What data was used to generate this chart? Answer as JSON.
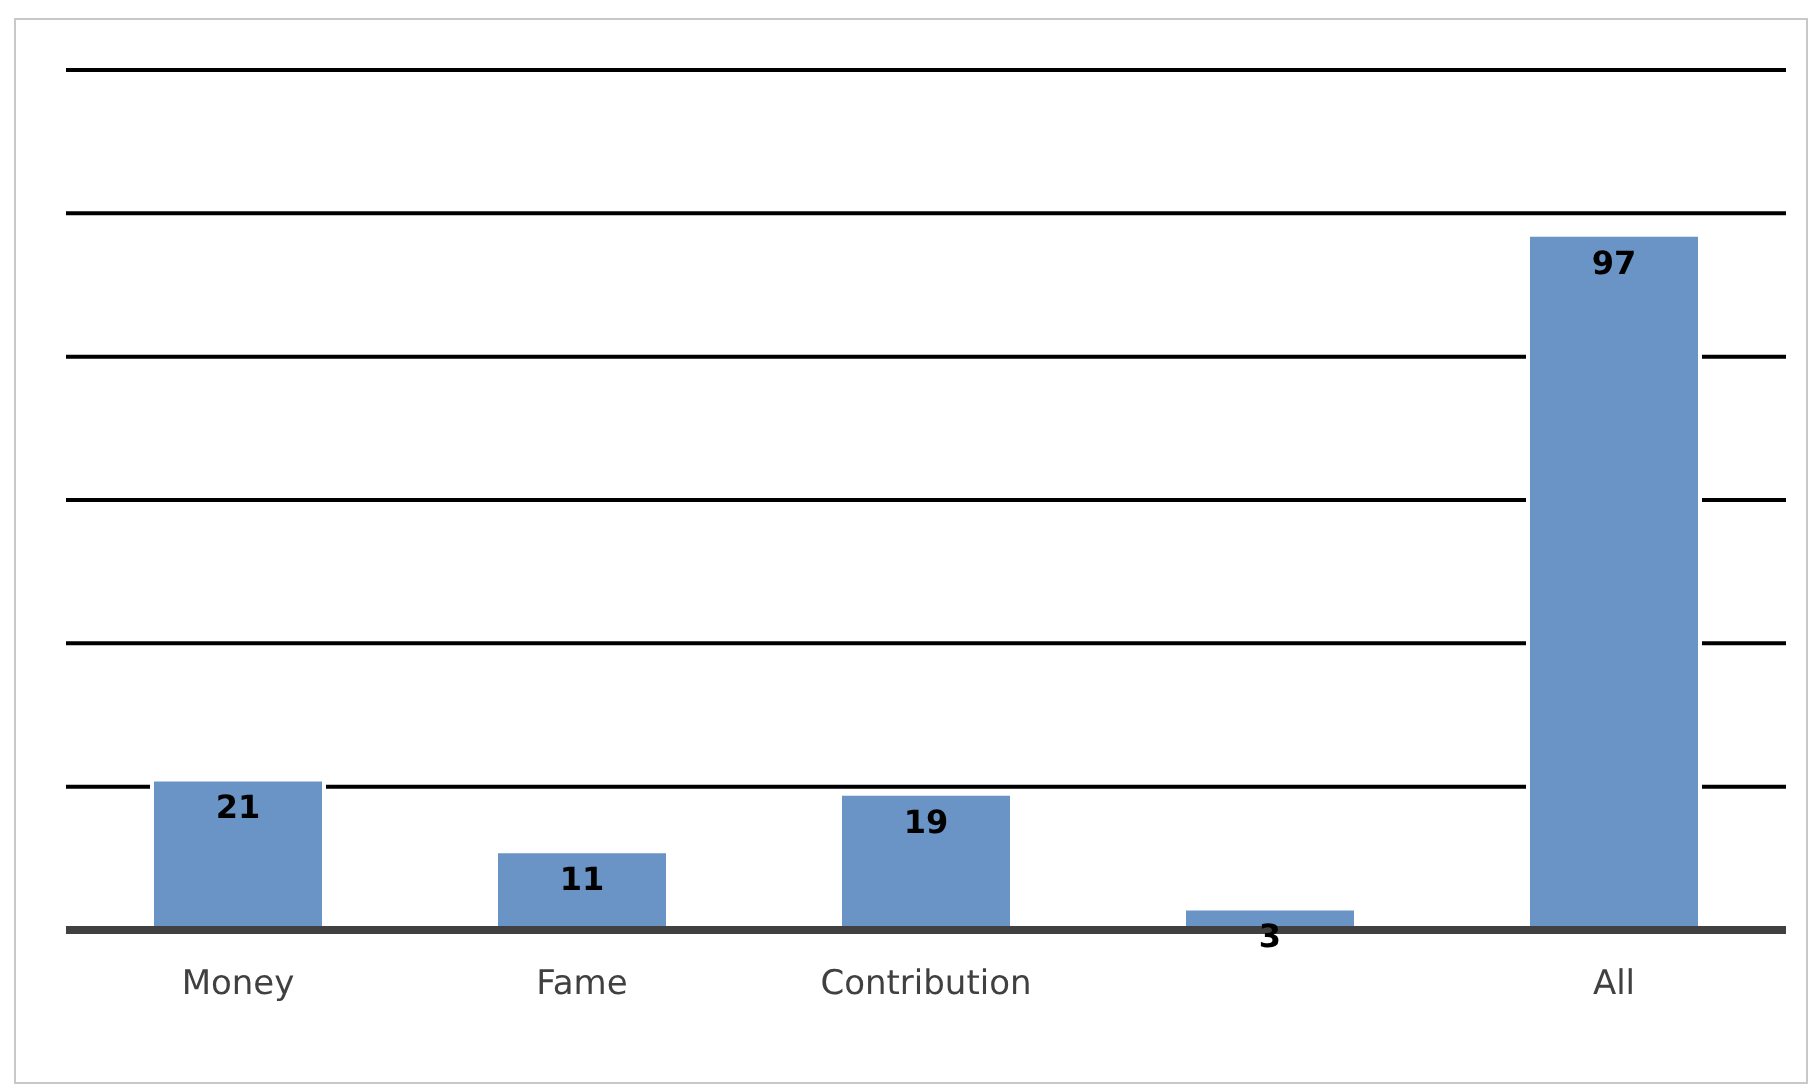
{
  "chart_data": {
    "type": "bar",
    "categories": [
      "Money",
      "Fame",
      "Contribution",
      null,
      "All"
    ],
    "values": [
      21,
      11,
      19,
      3,
      97
    ],
    "color": "#6a93c6",
    "ylim": [
      0,
      120
    ],
    "yticks": [
      0,
      20,
      40,
      60,
      80,
      100,
      120
    ],
    "grid": "y",
    "tick_labels": "x",
    "data_labels": true
  }
}
